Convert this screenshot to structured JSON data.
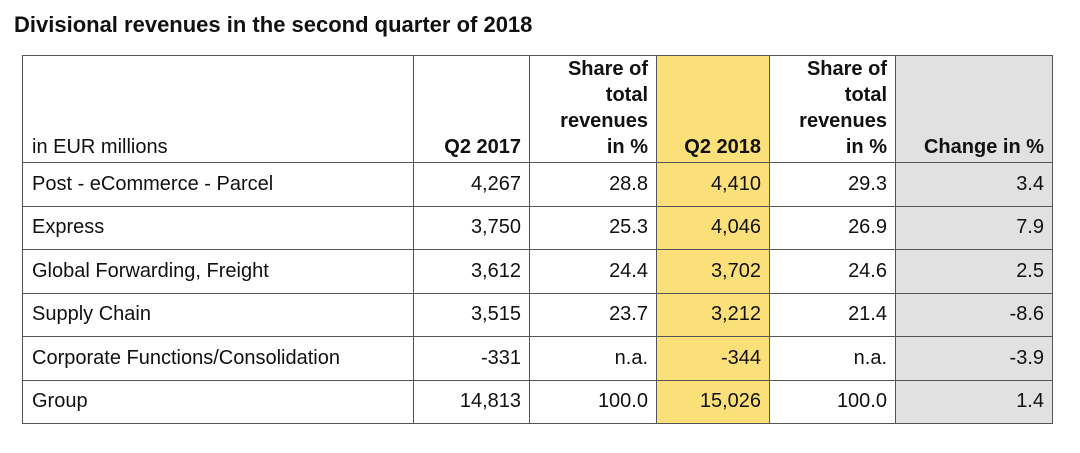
{
  "title": "Divisional revenues in the second quarter of 2018",
  "colors": {
    "highlight_q2_2018": "#fbe07a",
    "highlight_change": "#e1e1e1"
  },
  "table": {
    "headers": [
      "in EUR millions",
      "Q2 2017",
      "Share of total revenues in %",
      "Q2 2018",
      "Share of total revenues in %",
      "Change in %"
    ],
    "rows": [
      [
        "Post - eCommerce - Parcel",
        "4,267",
        "28.8",
        "4,410",
        "29.3",
        "3.4"
      ],
      [
        "Express",
        "3,750",
        "25.3",
        "4,046",
        "26.9",
        "7.9"
      ],
      [
        "Global Forwarding, Freight",
        "3,612",
        "24.4",
        "3,702",
        "24.6",
        "2.5"
      ],
      [
        "Supply Chain",
        "3,515",
        "23.7",
        "3,212",
        "21.4",
        "-8.6"
      ],
      [
        "Corporate Functions/Consolidation",
        "-331",
        "n.a.",
        "-344",
        "n.a.",
        "-3.9"
      ],
      [
        "Group",
        "14,813",
        "100.0",
        "15,026",
        "100.0",
        "1.4"
      ]
    ]
  }
}
